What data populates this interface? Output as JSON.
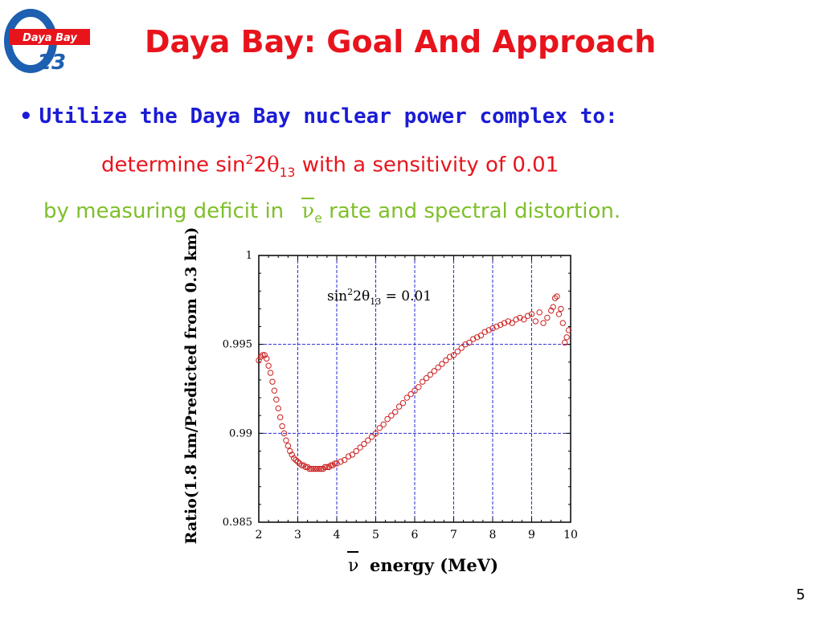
{
  "logo": {
    "text": "Daya Bay",
    "subscript": "13"
  },
  "slide": {
    "title": "Daya Bay: Goal And Approach",
    "bullet": "Utilize the Daya Bay nuclear power complex to:",
    "goal_prefix": "determine sin",
    "goal_sup": "2",
    "goal_two": "2",
    "goal_theta": "θ",
    "goal_sub": "13",
    "goal_suffix": " with a sensitivity of 0.01",
    "method_prefix": "by measuring deficit in ",
    "method_nu": "ν",
    "method_nu_sub": "e",
    "method_suffix": " rate and spectral distortion.",
    "page_number": "5"
  },
  "chart_data": {
    "type": "scatter",
    "xlabel_symbol": "ν",
    "xlabel": "energy (MeV)",
    "ylabel": "Ratio(1.8 km/Predicted from 0.3 km)",
    "annotation": {
      "prefix": "sin",
      "sup": "2",
      "two": "2",
      "theta": "θ",
      "sub": "13",
      "suffix": " = 0.01"
    },
    "xlim": [
      2,
      10
    ],
    "ylim": [
      0.985,
      1
    ],
    "x_ticks": [
      2,
      3,
      4,
      5,
      6,
      7,
      8,
      9,
      10
    ],
    "y_ticks": [
      0.985,
      0.99,
      0.995,
      1
    ],
    "y_tick_labels": [
      "0.985",
      "0.99",
      "0.995",
      "1"
    ],
    "grid": true,
    "marker": "open-circle",
    "marker_color": "#cc1f1f",
    "grid_color": "#2a2ad4",
    "x": [
      2.0,
      2.05,
      2.1,
      2.15,
      2.2,
      2.25,
      2.3,
      2.35,
      2.4,
      2.45,
      2.5,
      2.55,
      2.6,
      2.65,
      2.7,
      2.75,
      2.8,
      2.85,
      2.9,
      2.95,
      3.0,
      3.05,
      3.1,
      3.15,
      3.2,
      3.25,
      3.3,
      3.35,
      3.4,
      3.45,
      3.5,
      3.55,
      3.6,
      3.65,
      3.7,
      3.75,
      3.8,
      3.85,
      3.9,
      3.95,
      4.0,
      4.1,
      4.2,
      4.3,
      4.4,
      4.5,
      4.6,
      4.7,
      4.8,
      4.9,
      5.0,
      5.1,
      5.2,
      5.3,
      5.4,
      5.5,
      5.6,
      5.7,
      5.8,
      5.9,
      6.0,
      6.1,
      6.2,
      6.3,
      6.4,
      6.5,
      6.6,
      6.7,
      6.8,
      6.9,
      7.0,
      7.1,
      7.2,
      7.3,
      7.4,
      7.5,
      7.6,
      7.7,
      7.8,
      7.9,
      8.0,
      8.1,
      8.2,
      8.3,
      8.4,
      8.5,
      8.6,
      8.7,
      8.8,
      8.9,
      9.0,
      9.1,
      9.2,
      9.3,
      9.4,
      9.5,
      9.55,
      9.6,
      9.65,
      9.7,
      9.75,
      9.8,
      9.85,
      9.9,
      9.95
    ],
    "y": [
      0.9941,
      0.9943,
      0.9944,
      0.9944,
      0.9942,
      0.9938,
      0.9934,
      0.9929,
      0.9924,
      0.9919,
      0.9914,
      0.9909,
      0.9904,
      0.99,
      0.9896,
      0.9893,
      0.989,
      0.9888,
      0.9886,
      0.9885,
      0.9884,
      0.9883,
      0.9882,
      0.9882,
      0.9881,
      0.9881,
      0.988,
      0.988,
      0.988,
      0.988,
      0.988,
      0.988,
      0.988,
      0.988,
      0.9881,
      0.9881,
      0.9881,
      0.9882,
      0.9882,
      0.9883,
      0.9883,
      0.9884,
      0.9885,
      0.9887,
      0.9888,
      0.989,
      0.9892,
      0.9894,
      0.9896,
      0.9898,
      0.99,
      0.9903,
      0.9905,
      0.9908,
      0.991,
      0.9912,
      0.9915,
      0.9917,
      0.992,
      0.9922,
      0.9924,
      0.9926,
      0.9929,
      0.9931,
      0.9933,
      0.9935,
      0.9937,
      0.9939,
      0.9941,
      0.9943,
      0.9944,
      0.9946,
      0.9948,
      0.995,
      0.9951,
      0.9953,
      0.9954,
      0.9955,
      0.9957,
      0.9958,
      0.9959,
      0.996,
      0.9961,
      0.9962,
      0.9963,
      0.9962,
      0.9964,
      0.9965,
      0.9964,
      0.9966,
      0.9967,
      0.9963,
      0.9968,
      0.9962,
      0.9965,
      0.9969,
      0.9971,
      0.9976,
      0.9977,
      0.9967,
      0.997,
      0.9962,
      0.9951,
      0.9954,
      0.9958
    ]
  },
  "colors": {
    "title": "#e8141c",
    "bullet": "#1b1bd6",
    "goal": "#e8141c",
    "method": "#7fbf2a"
  }
}
